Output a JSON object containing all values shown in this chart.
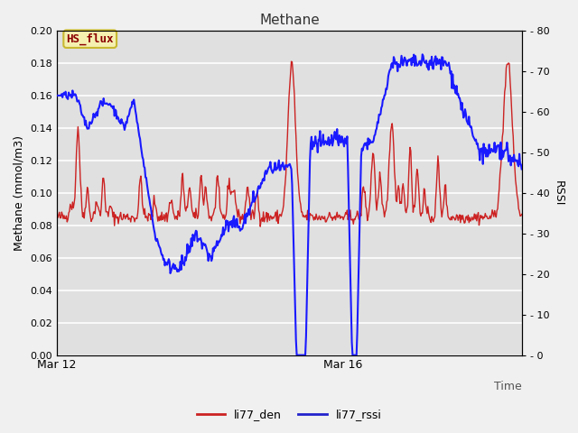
{
  "title": "Methane",
  "ylabel_left": "Methane (mmol/m3)",
  "ylabel_right": "RSSI",
  "xlabel": "Time",
  "ylim_left": [
    0.0,
    0.2
  ],
  "ylim_right": [
    0,
    80
  ],
  "yticks_left": [
    0.0,
    0.02,
    0.04,
    0.06,
    0.08,
    0.1,
    0.12,
    0.14,
    0.16,
    0.18,
    0.2
  ],
  "yticks_right": [
    0,
    10,
    20,
    30,
    40,
    50,
    60,
    70,
    80
  ],
  "xtick_labels": [
    "Mar 12",
    "Mar 16"
  ],
  "xtick_positions": [
    0.0,
    0.615
  ],
  "plot_bg_color": "#e0e0e0",
  "fig_bg_color": "#f0f0f0",
  "grid_color": "#ffffff",
  "legend_items": [
    {
      "label": "li77_den",
      "color": "#cc2222"
    },
    {
      "label": "li77_rssi",
      "color": "#2222cc"
    }
  ],
  "annotation_text": "HS_flux",
  "annotation_color": "#8b0000",
  "annotation_bg": "#f5f0b0",
  "annotation_border": "#c8b830",
  "line_red_color": "#cc2222",
  "line_blue_color": "#1a1aff"
}
